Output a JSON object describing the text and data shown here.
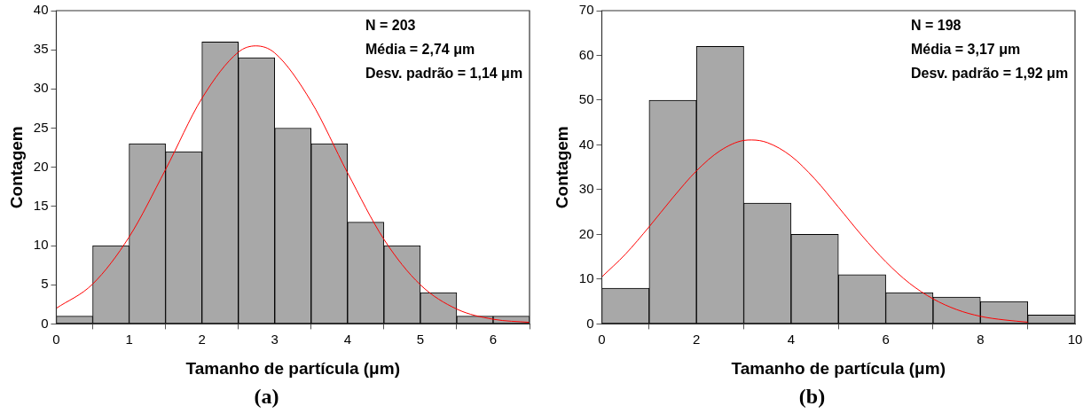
{
  "chart_data": [
    {
      "type": "histogram",
      "title": "(a)",
      "xlabel": "Tamanho de partícula (μm)",
      "ylabel": "Contagem",
      "xlim": [
        0,
        6.5
      ],
      "xticks": [
        0,
        1,
        2,
        3,
        4,
        5,
        6
      ],
      "ylim": [
        0,
        40
      ],
      "yticks": [
        0,
        5,
        10,
        15,
        20,
        25,
        30,
        35,
        40
      ],
      "legend": false,
      "annotations": [
        "N = 203",
        "Média = 2,74 μm",
        "Desv. padrão = 1,14 μm"
      ],
      "series": [
        {
          "color": "#a8a8a8",
          "bins": [
            0,
            0.5,
            1,
            1.5,
            2,
            2.5,
            3,
            3.5,
            4,
            4.5,
            5,
            5.5,
            6,
            6.5
          ],
          "values": [
            1,
            10,
            23,
            22,
            36,
            34,
            25,
            23,
            13,
            10,
            4,
            1,
            1
          ]
        },
        {
          "type": "line",
          "color": "#ff0000",
          "x": [
            0,
            0.5,
            1,
            1.5,
            2,
            2.5,
            2.74,
            3,
            3.5,
            4,
            4.5,
            5,
            5.5,
            6,
            6.5
          ],
          "values": [
            2,
            5.1,
            11.1,
            19.7,
            28.8,
            34.7,
            35.5,
            34.6,
            28.4,
            19.3,
            10.8,
            5,
            1.9,
            0.6,
            0.2
          ]
        }
      ]
    },
    {
      "type": "histogram",
      "title": "(b)",
      "xlabel": "Tamanho de partícula (μm)",
      "ylabel": "Contagem",
      "xlim": [
        0,
        10
      ],
      "xticks": [
        0,
        2,
        4,
        6,
        8,
        10
      ],
      "ylim": [
        0,
        70
      ],
      "yticks": [
        0,
        10,
        20,
        30,
        40,
        50,
        60,
        70
      ],
      "legend": false,
      "annotations": [
        "N = 198",
        "Média = 3,17 μm",
        "Desv. padrão = 1,92 μm"
      ],
      "series": [
        {
          "color": "#a8a8a8",
          "bins": [
            0,
            1,
            2,
            3,
            4,
            5,
            6,
            7,
            8,
            9,
            10
          ],
          "values": [
            8,
            50,
            62,
            27,
            20,
            11,
            7,
            6,
            5,
            2
          ]
        },
        {
          "type": "line",
          "color": "#ff0000",
          "x": [
            0,
            0.5,
            1,
            1.5,
            2,
            2.5,
            3,
            3.17,
            3.5,
            4,
            4.5,
            5,
            5.5,
            6,
            6.5,
            7,
            7.5,
            8,
            8.5,
            9
          ],
          "values": [
            10.5,
            15.6,
            21.7,
            28.2,
            34.2,
            38.7,
            41,
            41.1,
            40.5,
            37.5,
            32.4,
            26.1,
            19.7,
            13.9,
            9.1,
            5.6,
            3.2,
            1.7,
            0.9,
            0.4
          ]
        }
      ]
    }
  ]
}
